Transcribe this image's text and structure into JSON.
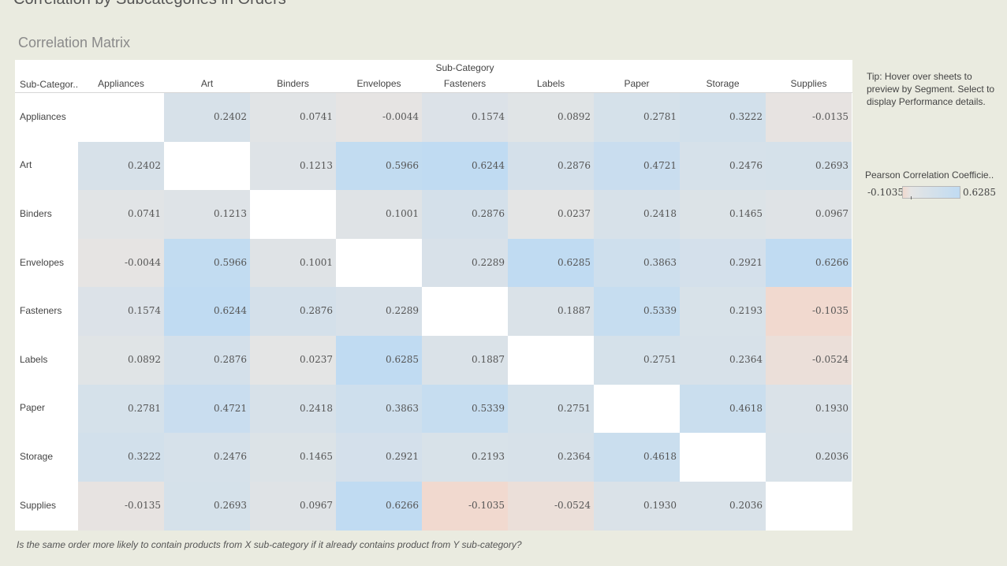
{
  "dashboard": {
    "title": "Correlation by Subcategories in Orders",
    "sheet_title": "Correlation Matrix",
    "caption": "Is the same order more likely to contain products from X sub-category if it already contains product from Y sub-category?",
    "tip": "Tip: Hover over sheets to preview by Segment. Select to display Performance details."
  },
  "legend": {
    "title": "Pearson Correlation Coefficie..",
    "min_label": "-0.1035",
    "max_label": "0.6285",
    "min": -0.1035,
    "max": 0.6285
  },
  "colors": {
    "negative": "#f1d9cf",
    "neutral": "#e5e5e4",
    "positive": "#c0dbf2",
    "diagonal": "#ffffff"
  },
  "chart_data": {
    "type": "heatmap",
    "title": "Correlation Matrix",
    "column_axis_label": "Sub-Category",
    "row_axis_label": "Sub-Categor..",
    "categories": [
      "Appliances",
      "Art",
      "Binders",
      "Envelopes",
      "Fasteners",
      "Labels",
      "Paper",
      "Storage",
      "Supplies"
    ],
    "values": [
      [
        null,
        0.2402,
        0.0741,
        -0.0044,
        0.1574,
        0.0892,
        0.2781,
        0.3222,
        -0.0135
      ],
      [
        0.2402,
        null,
        0.1213,
        0.5966,
        0.6244,
        0.2876,
        0.4721,
        0.2476,
        0.2693
      ],
      [
        0.0741,
        0.1213,
        null,
        0.1001,
        0.2876,
        0.0237,
        0.2418,
        0.1465,
        0.0967
      ],
      [
        -0.0044,
        0.5966,
        0.1001,
        null,
        0.2289,
        0.6285,
        0.3863,
        0.2921,
        0.6266
      ],
      [
        0.1574,
        0.6244,
        0.2876,
        0.2289,
        null,
        0.1887,
        0.5339,
        0.2193,
        -0.1035
      ],
      [
        0.0892,
        0.2876,
        0.0237,
        0.6285,
        0.1887,
        null,
        0.2751,
        0.2364,
        -0.0524
      ],
      [
        0.2781,
        0.4721,
        0.2418,
        0.3863,
        0.5339,
        0.2751,
        null,
        0.4618,
        0.193
      ],
      [
        0.3222,
        0.2476,
        0.1465,
        0.2921,
        0.2193,
        0.2364,
        0.4618,
        null,
        0.2036
      ],
      [
        -0.0135,
        0.2693,
        0.0967,
        0.6266,
        -0.1035,
        -0.0524,
        0.193,
        0.2036,
        null
      ]
    ],
    "labels": [
      [
        "",
        "0.2402",
        "0.0741",
        "-0.0044",
        "0.1574",
        "0.0892",
        "0.2781",
        "0.3222",
        "-0.0135"
      ],
      [
        "0.2402",
        "",
        "0.1213",
        "0.5966",
        "0.6244",
        "0.2876",
        "0.4721",
        "0.2476",
        "0.2693"
      ],
      [
        "0.0741",
        "0.1213",
        "",
        "0.1001",
        "0.2876",
        "0.0237",
        "0.2418",
        "0.1465",
        "0.0967"
      ],
      [
        "-0.0044",
        "0.5966",
        "0.1001",
        "",
        "0.2289",
        "0.6285",
        "0.3863",
        "0.2921",
        "0.6266"
      ],
      [
        "0.1574",
        "0.6244",
        "0.2876",
        "0.2289",
        "",
        "0.1887",
        "0.5339",
        "0.2193",
        "-0.1035"
      ],
      [
        "0.0892",
        "0.2876",
        "0.0237",
        "0.6285",
        "0.1887",
        "",
        "0.2751",
        "0.2364",
        "-0.0524"
      ],
      [
        "0.2781",
        "0.4721",
        "0.2418",
        "0.3863",
        "0.5339",
        "0.2751",
        "",
        "0.4618",
        "0.1930"
      ],
      [
        "0.3222",
        "0.2476",
        "0.1465",
        "0.2921",
        "0.2193",
        "0.2364",
        "0.4618",
        "",
        "0.2036"
      ],
      [
        "-0.0135",
        "0.2693",
        "0.0967",
        "0.6266",
        "-0.1035",
        "-0.0524",
        "0.1930",
        "0.2036",
        ""
      ]
    ],
    "color_range": [
      -0.1035,
      0.6285
    ]
  }
}
